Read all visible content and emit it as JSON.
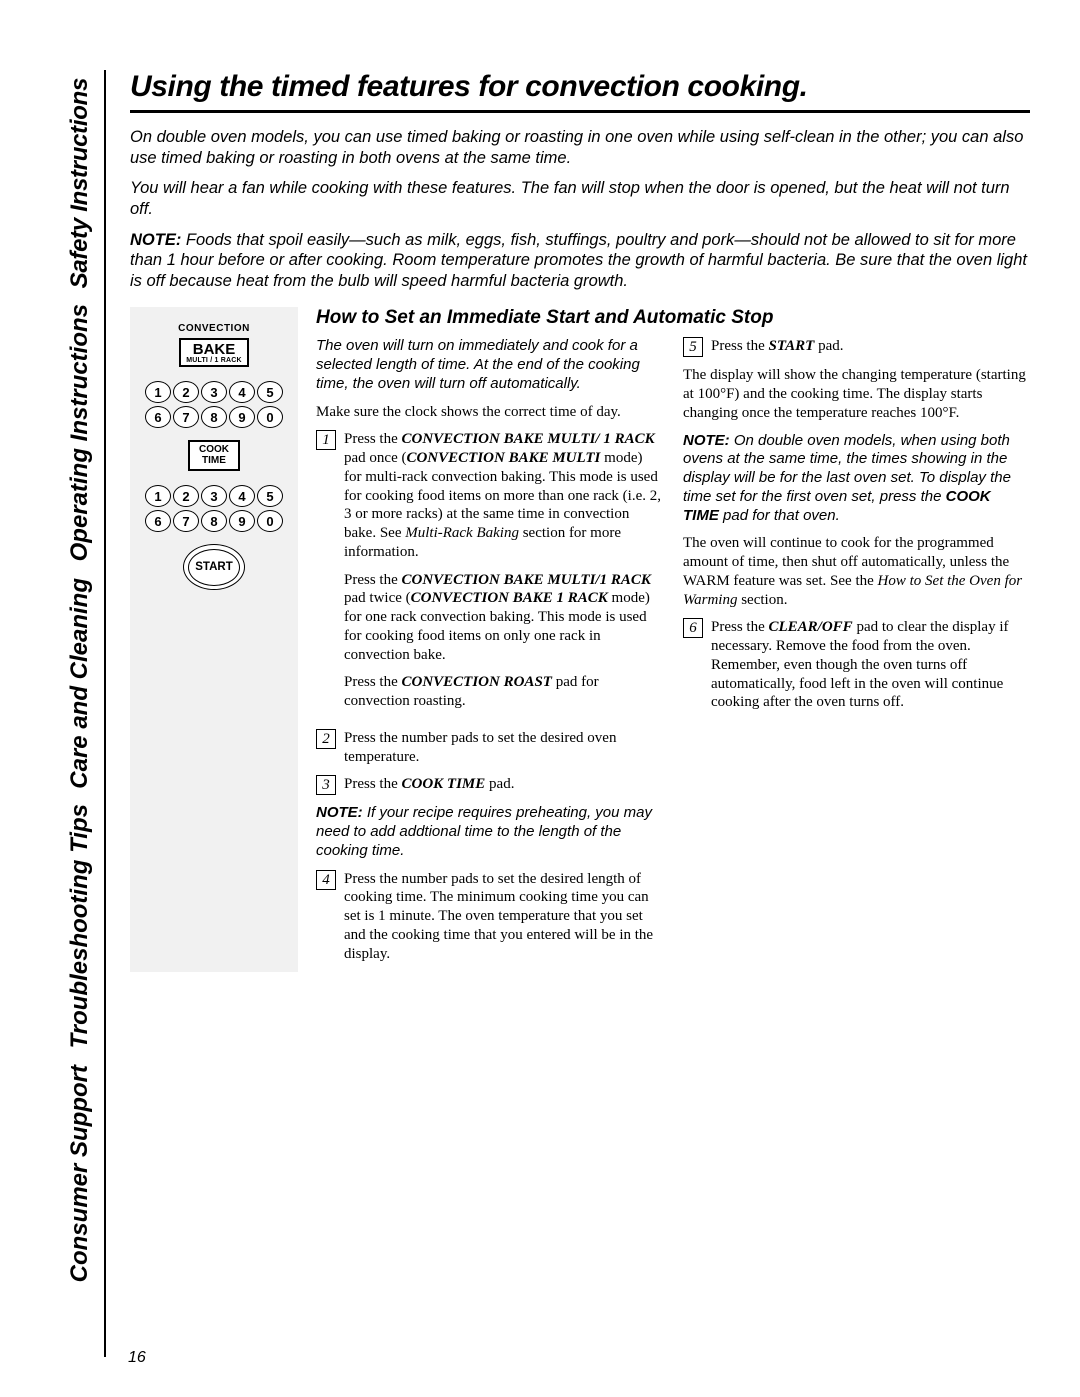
{
  "tabs": {
    "safety": "Safety Instructions",
    "operating": "Operating Instructions",
    "care": "Care and Cleaning",
    "troubleshooting": "Troubleshooting Tips",
    "consumer": "Consumer Support"
  },
  "title": "Using the timed features for convection cooking.",
  "intro": {
    "p1": "On double oven models, you can use timed baking or roasting in one oven while using self-clean in the other; you can also use timed baking or roasting in both ovens at the same time.",
    "p2": "You will hear a fan while cooking with these features. The fan will stop when the door is opened, but the heat will not turn off.",
    "note_label": "NOTE:",
    "p3_rest": " Foods that spoil easily—such as milk, eggs, fish, stuffings, poultry and pork—should not be allowed to sit for more than 1 hour before or after cooking. Room temperature promotes the growth of harmful bacteria. Be sure that the oven light is off because heat from the bulb will speed harmful bacteria growth."
  },
  "panel": {
    "convection": "CONVECTION",
    "bake": "BAKE",
    "bake_sub": "MULTI / 1 RACK",
    "keys_row1": [
      "1",
      "2",
      "3",
      "4",
      "5"
    ],
    "keys_row2": [
      "6",
      "7",
      "8",
      "9",
      "0"
    ],
    "cook": "COOK",
    "time": "TIME",
    "start": "START"
  },
  "subheading": "How to Set an Immediate Start and Automatic Stop",
  "left": {
    "lead": "The oven will turn on immediately and cook for a selected length of time. At the end of the cooking time, the oven will turn off automatically.",
    "clock": "Make sure the clock shows the correct time of day.",
    "s1_a": "Press the ",
    "s1_b": "CONVECTION BAKE MULTI/ 1 RACK",
    "s1_c": " pad once (",
    "s1_d": "CONVECTION BAKE MULTI",
    "s1_e": " mode) for multi-rack convection baking. This mode is used for cooking food items on more than one rack (i.e. 2, 3 or more racks) at the same time in convection bake. See ",
    "s1_f": "Multi-Rack Baking",
    "s1_g": " section for more information.",
    "s1_p2a": "Press the ",
    "s1_p2b": "CONVECTION BAKE MULTI/1 RACK",
    "s1_p2c": " pad twice (",
    "s1_p2d": "CONVECTION BAKE 1 RACK",
    "s1_p2e": " mode) for one rack convection baking. This mode is used for cooking food items on only one rack in convection bake.",
    "s1_p3a": "Press the ",
    "s1_p3b": "CONVECTION ROAST",
    "s1_p3c": " pad for convection roasting.",
    "s2": "Press the number pads to set the desired oven temperature.",
    "s3a": "Press the ",
    "s3b": "COOK TIME",
    "s3c": " pad.",
    "note2_label": "NOTE:",
    "note2_rest": " If your recipe requires preheating, you may need to add addtional time to the length of the cooking time.",
    "s4": "Press the number pads to set the desired length of cooking time. The minimum cooking time you can set is 1 minute. The oven temperature that you set and the cooking time that you entered will be in the display."
  },
  "right": {
    "s5a": "Press the ",
    "s5b": "START",
    "s5c": " pad.",
    "p1": "The display will show the changing temperature (starting at 100°F) and the cooking time. The display starts changing once the temperature reaches 100°F.",
    "note_label": "NOTE:",
    "note_mid": " On double oven models, when using both ovens at the same time, the times showing in the display will be for the last oven set. To display the time set for the first oven set, press the ",
    "note_bold": "COOK TIME",
    "note_end": " pad for that oven.",
    "p2a": "The oven will continue to cook for the programmed amount of time, then shut off automatically, unless the WARM feature was set. See the ",
    "p2b": "How to Set the Oven for Warming",
    "p2c": " section.",
    "s6a": "Press the ",
    "s6b": "CLEAR/OFF",
    "s6c": " pad to clear the display if necessary. Remove the food from the oven. Remember, even though the oven turns off automatically, food left in the oven will continue cooking after the oven turns off."
  },
  "steps": {
    "n1": "1",
    "n2": "2",
    "n3": "3",
    "n4": "4",
    "n5": "5",
    "n6": "6"
  },
  "page_num": "16"
}
